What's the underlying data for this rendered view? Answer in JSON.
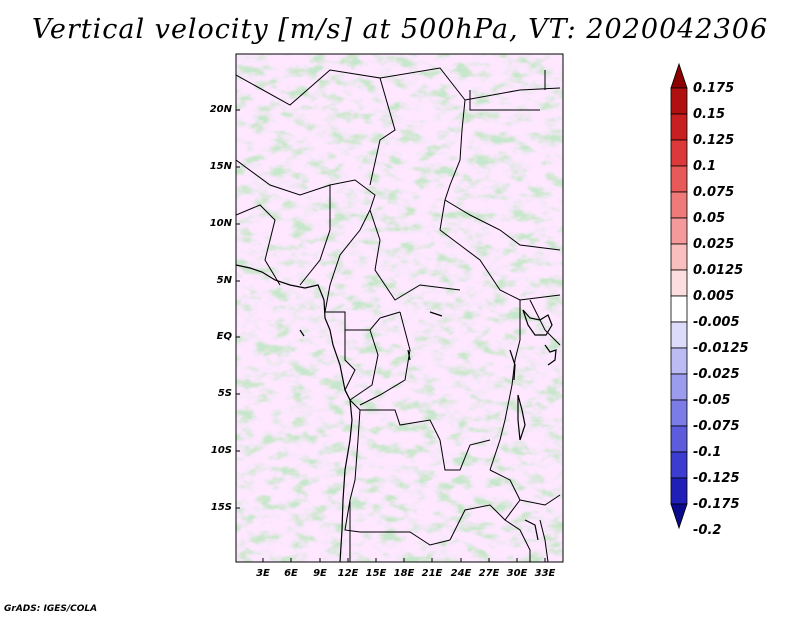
{
  "title": "Vertical velocity [m/s] at 500hPa, VT: 2020042306",
  "credit": "GrADS: IGES/COLA",
  "map": {
    "lat_labels": [
      "20N",
      "15N",
      "10N",
      "5N",
      "EQ",
      "5S",
      "10S",
      "15S"
    ],
    "lon_labels": [
      "3E",
      "6E",
      "9E",
      "12E",
      "15E",
      "18E",
      "21E",
      "24E",
      "27E",
      "30E",
      "33E"
    ]
  },
  "colorbar": {
    "labels": [
      "0.175",
      "0.15",
      "0.125",
      "0.1",
      "0.075",
      "0.05",
      "0.025",
      "0.0125",
      "0.005",
      "-0.005",
      "-0.0125",
      "-0.025",
      "-0.05",
      "-0.075",
      "-0.1",
      "-0.125",
      "-0.175",
      "-0.2"
    ],
    "colors": [
      "#8b0000",
      "#b01010",
      "#c82020",
      "#dc3a3a",
      "#e85a5a",
      "#ef7a7a",
      "#f59a9a",
      "#f9bebe",
      "#fcdede",
      "#ffffff",
      "#dcdcfa",
      "#bcbcf4",
      "#9c9cee",
      "#7c7ce6",
      "#5c5cdc",
      "#3c3cd0",
      "#2020b8",
      "#0a0a8c"
    ]
  }
}
